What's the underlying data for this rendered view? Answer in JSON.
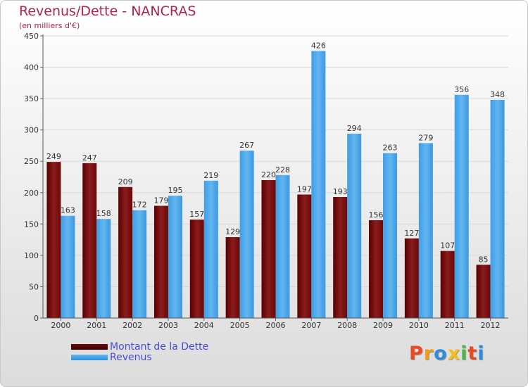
{
  "title": "Revenus/Dette - NANCRAS",
  "subtitle": "(en milliers d'€)",
  "colors": {
    "debt": "#7a1515",
    "revenue": "#4aa6e8",
    "title": "#b0224e",
    "legend_text": "#4a4ad8"
  },
  "logo": {
    "text": "Proxiti",
    "letters": [
      {
        "ch": "P",
        "color": "#e84b1e"
      },
      {
        "ch": "r",
        "color": "#f39a17"
      },
      {
        "ch": "o",
        "color": "#2e8fd8"
      },
      {
        "ch": "x",
        "color": "#f2c019"
      },
      {
        "ch": "i",
        "color": "#4db848"
      },
      {
        "ch": "t",
        "color": "#e84b1e"
      },
      {
        "ch": "i",
        "color": "#2e8fd8"
      }
    ]
  },
  "chart_data": {
    "type": "bar",
    "title": "Revenus/Dette - NANCRAS",
    "ylabel": "(en milliers d'€)",
    "xlabel": "",
    "ylim": [
      0,
      450
    ],
    "yticks": [
      0,
      50,
      100,
      150,
      200,
      250,
      300,
      350,
      400,
      450
    ],
    "grid": true,
    "legend_position": "bottom-left",
    "categories": [
      "2000",
      "2001",
      "2002",
      "2003",
      "2004",
      "2005",
      "2006",
      "2007",
      "2008",
      "2009",
      "2010",
      "2011",
      "2012"
    ],
    "series": [
      {
        "name": "Montant de la Dette",
        "values": [
          249,
          247,
          209,
          179,
          157,
          129,
          220,
          197,
          193,
          156,
          127,
          107,
          85
        ]
      },
      {
        "name": "Revenus",
        "values": [
          163,
          158,
          172,
          195,
          219,
          267,
          228,
          426,
          294,
          263,
          279,
          356,
          348
        ]
      }
    ]
  }
}
